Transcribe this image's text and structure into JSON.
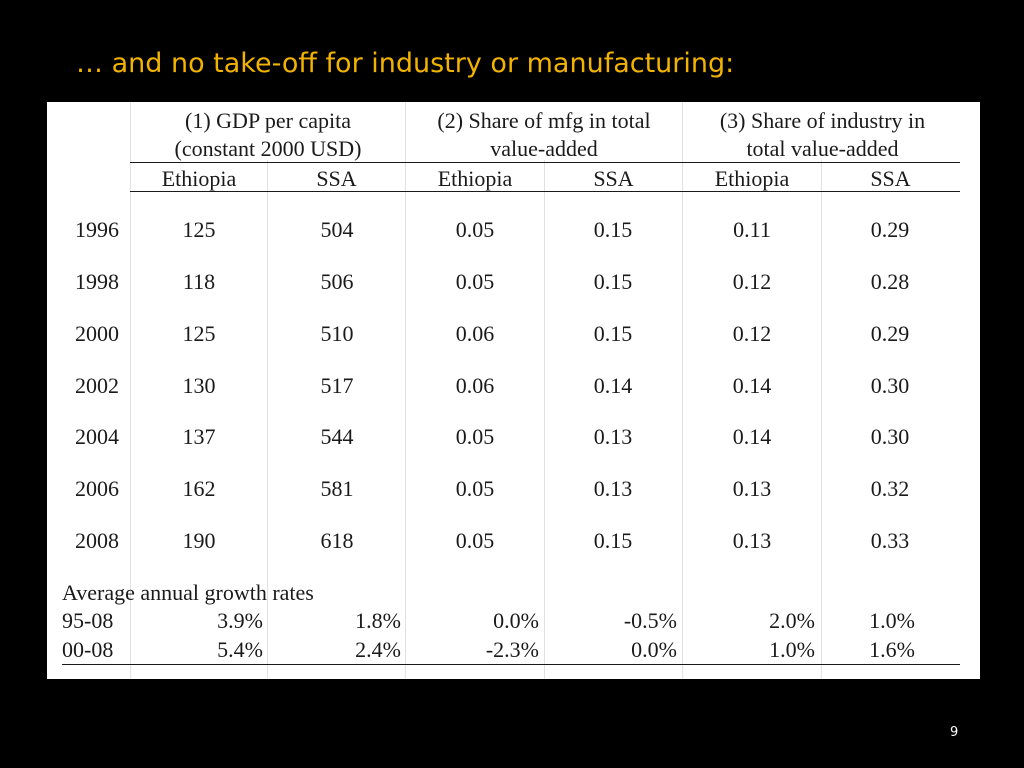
{
  "slide": {
    "title": "… and no take-off for industry or manufacturing:",
    "page_number": "9"
  },
  "table": {
    "groups": [
      {
        "line1": "(1) GDP per capita",
        "line2": "(constant 2000 USD)"
      },
      {
        "line1": "(2) Share of mfg in total",
        "line2": "value-added"
      },
      {
        "line1": "(3) Share of industry in",
        "line2": "total value-added"
      }
    ],
    "subheaders": [
      "Ethiopia",
      "SSA",
      "Ethiopia",
      "SSA",
      "Ethiopia",
      "SSA"
    ],
    "rows": [
      {
        "year": "1996",
        "values": [
          "125",
          "504",
          "0.05",
          "0.15",
          "0.11",
          "0.29"
        ]
      },
      {
        "year": "1998",
        "values": [
          "118",
          "506",
          "0.05",
          "0.15",
          "0.12",
          "0.28"
        ]
      },
      {
        "year": "2000",
        "values": [
          "125",
          "510",
          "0.06",
          "0.15",
          "0.12",
          "0.29"
        ]
      },
      {
        "year": "2002",
        "values": [
          "130",
          "517",
          "0.06",
          "0.14",
          "0.14",
          "0.30"
        ]
      },
      {
        "year": "2004",
        "values": [
          "137",
          "544",
          "0.05",
          "0.13",
          "0.14",
          "0.30"
        ]
      },
      {
        "year": "2006",
        "values": [
          "162",
          "581",
          "0.05",
          "0.13",
          "0.13",
          "0.32"
        ]
      },
      {
        "year": "2008",
        "values": [
          "190",
          "618",
          "0.05",
          "0.15",
          "0.13",
          "0.33"
        ]
      }
    ],
    "growth_heading": "Average annual growth rates",
    "growth_rows": [
      {
        "period": "95-08",
        "values": [
          "3.9%",
          "1.8%",
          "0.0%",
          "-0.5%",
          "2.0%",
          "1.0%"
        ]
      },
      {
        "period": "00-08",
        "values": [
          "5.4%",
          "2.4%",
          "-2.3%",
          "0.0%",
          "1.0%",
          "1.6%"
        ]
      }
    ]
  }
}
